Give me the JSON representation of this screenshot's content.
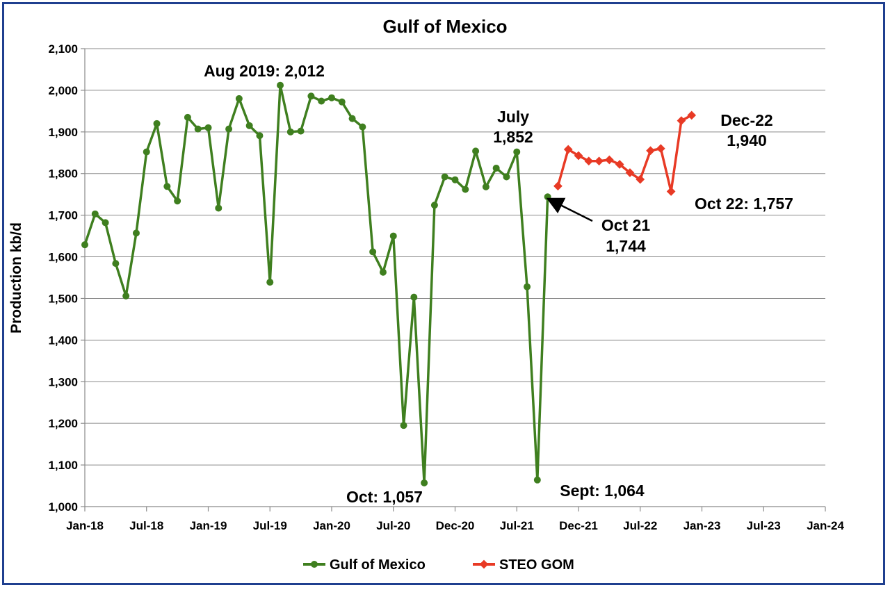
{
  "chart_data": {
    "type": "line",
    "title": "Gulf of Mexico",
    "ylabel": "Production kb/d",
    "xlabel": "",
    "ylim": [
      1000,
      2100
    ],
    "y_ticks": [
      "1,000",
      "1,100",
      "1,200",
      "1,300",
      "1,400",
      "1,500",
      "1,600",
      "1,700",
      "1,800",
      "1,900",
      "2,000",
      "2,100"
    ],
    "x_ticks": [
      "Jan-18",
      "Jul-18",
      "Jan-19",
      "Jul-19",
      "Jan-20",
      "Jul-20",
      "Dec-20",
      "Jul-21",
      "Dec-21",
      "Jul-22",
      "Jan-23",
      "Jul-23",
      "Jan-24"
    ],
    "grid": "horizontal",
    "legend_position": "bottom",
    "series": [
      {
        "name": "Gulf of Mexico",
        "color": "#3f7f1f",
        "marker": "circle",
        "x": [
          "2018-01",
          "2018-02",
          "2018-03",
          "2018-04",
          "2018-05",
          "2018-06",
          "2018-07",
          "2018-08",
          "2018-09",
          "2018-10",
          "2018-11",
          "2018-12",
          "2019-01",
          "2019-02",
          "2019-03",
          "2019-04",
          "2019-05",
          "2019-06",
          "2019-07",
          "2019-08",
          "2019-09",
          "2019-10",
          "2019-11",
          "2019-12",
          "2020-01",
          "2020-02",
          "2020-03",
          "2020-04",
          "2020-05",
          "2020-06",
          "2020-07",
          "2020-08",
          "2020-09",
          "2020-10",
          "2020-11",
          "2020-12",
          "2021-01",
          "2021-02",
          "2021-03",
          "2021-04",
          "2021-05",
          "2021-06",
          "2021-07",
          "2021-08",
          "2021-09",
          "2021-10"
        ],
        "values": [
          1629,
          1703,
          1682,
          1584,
          1506,
          1657,
          1852,
          1920,
          1769,
          1734,
          1935,
          1907,
          1910,
          1717,
          1907,
          1980,
          1915,
          1891,
          1539,
          2012,
          1900,
          1902,
          1986,
          1974,
          1982,
          1972,
          1932,
          1912,
          1612,
          1563,
          1650,
          1195,
          1503,
          1057,
          1724,
          1792,
          1785,
          1762,
          1854,
          1768,
          1813,
          1792,
          1852,
          1528,
          1064,
          1744
        ]
      },
      {
        "name": "STEO GOM",
        "color": "#e83a25",
        "marker": "diamond",
        "x": [
          "2021-11",
          "2021-12",
          "2022-01",
          "2022-02",
          "2022-03",
          "2022-04",
          "2022-05",
          "2022-06",
          "2022-07",
          "2022-08",
          "2022-09",
          "2022-10",
          "2022-11",
          "2022-12"
        ],
        "values": [
          1770,
          1858,
          1843,
          1830,
          1830,
          1833,
          1822,
          1802,
          1786,
          1855,
          1860,
          1757,
          1927,
          1940
        ]
      }
    ],
    "annotations": [
      {
        "id": "aug2019",
        "lines": [
          "Aug 2019: 2,012"
        ]
      },
      {
        "id": "july",
        "lines": [
          "July",
          "1,852"
        ]
      },
      {
        "id": "dec22",
        "lines": [
          "Dec-22",
          "1,940"
        ]
      },
      {
        "id": "oct22",
        "lines": [
          "Oct 22: 1,757"
        ]
      },
      {
        "id": "oct21",
        "lines": [
          "Oct 21",
          "1,744"
        ]
      },
      {
        "id": "oct",
        "lines": [
          "Oct: 1,057"
        ]
      },
      {
        "id": "sept",
        "lines": [
          "Sept: 1,064"
        ]
      }
    ]
  }
}
